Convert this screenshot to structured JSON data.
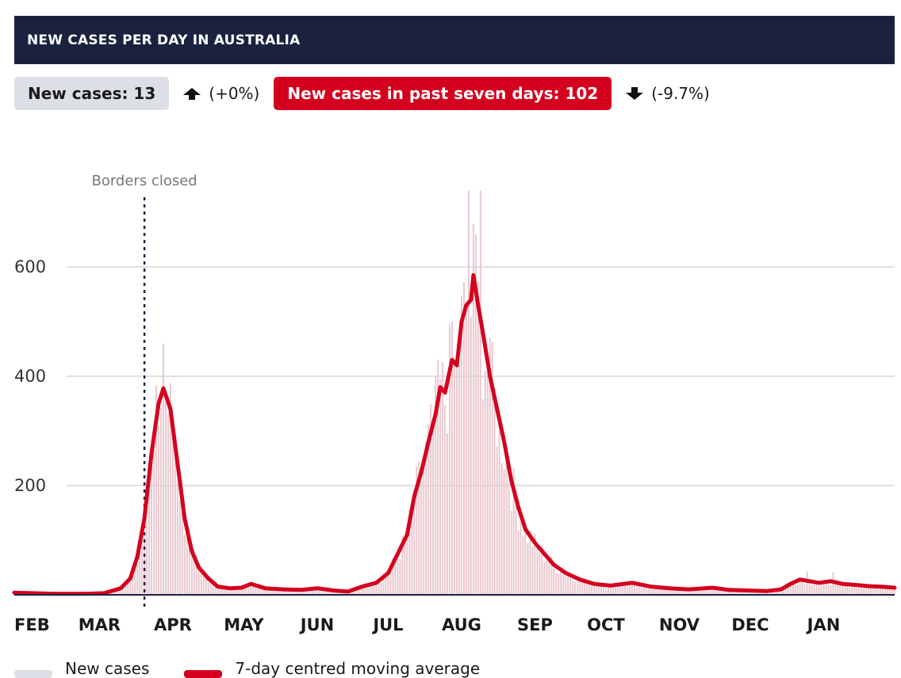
{
  "header": {
    "title": "NEW CASES PER DAY IN AUSTRALIA"
  },
  "stats": {
    "new_cases_label": "New cases: 13",
    "new_cases_change": "(+0%)",
    "seven_day_label": "New cases in past seven days: 102",
    "seven_day_change": "(-9.7%)"
  },
  "legend": {
    "bars_label": "New cases",
    "line_label": "7-day centred moving average"
  },
  "colors": {
    "header_bg": "#1b2240",
    "accent_red": "#d4001e",
    "bar": "#e9c9cf",
    "pill_grey": "#dcdfe5",
    "grid": "#d6d6d6"
  },
  "chart_data": {
    "type": "bar",
    "title": "NEW CASES PER DAY IN AUSTRALIA",
    "xlabel": "",
    "ylabel": "",
    "ylim": [
      0,
      740
    ],
    "yticks": [
      200,
      400,
      600
    ],
    "grid": true,
    "x_range": [
      "2020-01-25",
      "2021-01-31"
    ],
    "x_ticks": [
      {
        "label": "FEB",
        "date": "2020-02-01"
      },
      {
        "label": "MAR",
        "date": "2020-03-01"
      },
      {
        "label": "APR",
        "date": "2020-04-01"
      },
      {
        "label": "MAY",
        "date": "2020-05-01"
      },
      {
        "label": "JUN",
        "date": "2020-06-01"
      },
      {
        "label": "JUL",
        "date": "2020-07-01"
      },
      {
        "label": "AUG",
        "date": "2020-08-01"
      },
      {
        "label": "SEP",
        "date": "2020-09-01"
      },
      {
        "label": "OCT",
        "date": "2020-10-01"
      },
      {
        "label": "NOV",
        "date": "2020-11-01"
      },
      {
        "label": "DEC",
        "date": "2020-12-01"
      },
      {
        "label": "JAN",
        "date": "2021-01-01"
      }
    ],
    "annotations": [
      {
        "label": "Borders closed",
        "date": "2020-03-20"
      }
    ],
    "series": [
      {
        "name": "7-day centred moving average",
        "kind": "line",
        "points": [
          [
            "2020-01-25",
            4
          ],
          [
            "2020-02-10",
            2
          ],
          [
            "2020-02-25",
            2
          ],
          [
            "2020-03-03",
            3
          ],
          [
            "2020-03-10",
            12
          ],
          [
            "2020-03-14",
            30
          ],
          [
            "2020-03-17",
            70
          ],
          [
            "2020-03-20",
            140
          ],
          [
            "2020-03-23",
            260
          ],
          [
            "2020-03-26",
            350
          ],
          [
            "2020-03-28",
            378
          ],
          [
            "2020-03-31",
            340
          ],
          [
            "2020-04-03",
            240
          ],
          [
            "2020-04-06",
            140
          ],
          [
            "2020-04-09",
            80
          ],
          [
            "2020-04-12",
            50
          ],
          [
            "2020-04-16",
            30
          ],
          [
            "2020-04-20",
            15
          ],
          [
            "2020-04-25",
            12
          ],
          [
            "2020-04-30",
            13
          ],
          [
            "2020-05-04",
            20
          ],
          [
            "2020-05-10",
            12
          ],
          [
            "2020-05-18",
            10
          ],
          [
            "2020-05-25",
            9
          ],
          [
            "2020-06-01",
            12
          ],
          [
            "2020-06-08",
            8
          ],
          [
            "2020-06-14",
            6
          ],
          [
            "2020-06-20",
            15
          ],
          [
            "2020-06-26",
            22
          ],
          [
            "2020-07-01",
            40
          ],
          [
            "2020-07-05",
            75
          ],
          [
            "2020-07-09",
            110
          ],
          [
            "2020-07-12",
            180
          ],
          [
            "2020-07-15",
            225
          ],
          [
            "2020-07-18",
            280
          ],
          [
            "2020-07-21",
            330
          ],
          [
            "2020-07-23",
            380
          ],
          [
            "2020-07-25",
            370
          ],
          [
            "2020-07-28",
            430
          ],
          [
            "2020-07-30",
            420
          ],
          [
            "2020-08-01",
            500
          ],
          [
            "2020-08-03",
            530
          ],
          [
            "2020-08-05",
            540
          ],
          [
            "2020-08-06",
            585
          ],
          [
            "2020-08-08",
            530
          ],
          [
            "2020-08-10",
            480
          ],
          [
            "2020-08-13",
            400
          ],
          [
            "2020-08-16",
            340
          ],
          [
            "2020-08-19",
            280
          ],
          [
            "2020-08-22",
            210
          ],
          [
            "2020-08-25",
            160
          ],
          [
            "2020-08-28",
            120
          ],
          [
            "2020-09-01",
            95
          ],
          [
            "2020-09-05",
            75
          ],
          [
            "2020-09-09",
            55
          ],
          [
            "2020-09-14",
            40
          ],
          [
            "2020-09-20",
            28
          ],
          [
            "2020-09-26",
            20
          ],
          [
            "2020-10-03",
            17
          ],
          [
            "2020-10-12",
            22
          ],
          [
            "2020-10-20",
            15
          ],
          [
            "2020-10-28",
            12
          ],
          [
            "2020-11-05",
            10
          ],
          [
            "2020-11-15",
            13
          ],
          [
            "2020-11-22",
            9
          ],
          [
            "2020-11-30",
            8
          ],
          [
            "2020-12-08",
            7
          ],
          [
            "2020-12-14",
            10
          ],
          [
            "2020-12-18",
            20
          ],
          [
            "2020-12-22",
            28
          ],
          [
            "2020-12-26",
            25
          ],
          [
            "2020-12-30",
            22
          ],
          [
            "2021-01-04",
            25
          ],
          [
            "2021-01-09",
            20
          ],
          [
            "2021-01-15",
            18
          ],
          [
            "2021-01-20",
            16
          ],
          [
            "2021-01-25",
            15
          ],
          [
            "2021-01-31",
            13
          ]
        ]
      },
      {
        "name": "New cases",
        "kind": "bars",
        "peaks": [
          [
            "2020-03-28",
            460
          ],
          [
            "2020-07-22",
            430
          ],
          [
            "2020-07-28",
            500
          ],
          [
            "2020-08-04",
            740
          ],
          [
            "2020-08-07",
            660
          ],
          [
            "2020-08-09",
            740
          ],
          [
            "2020-08-13",
            470
          ],
          [
            "2020-12-25",
            43
          ],
          [
            "2021-01-05",
            42
          ]
        ]
      }
    ]
  }
}
